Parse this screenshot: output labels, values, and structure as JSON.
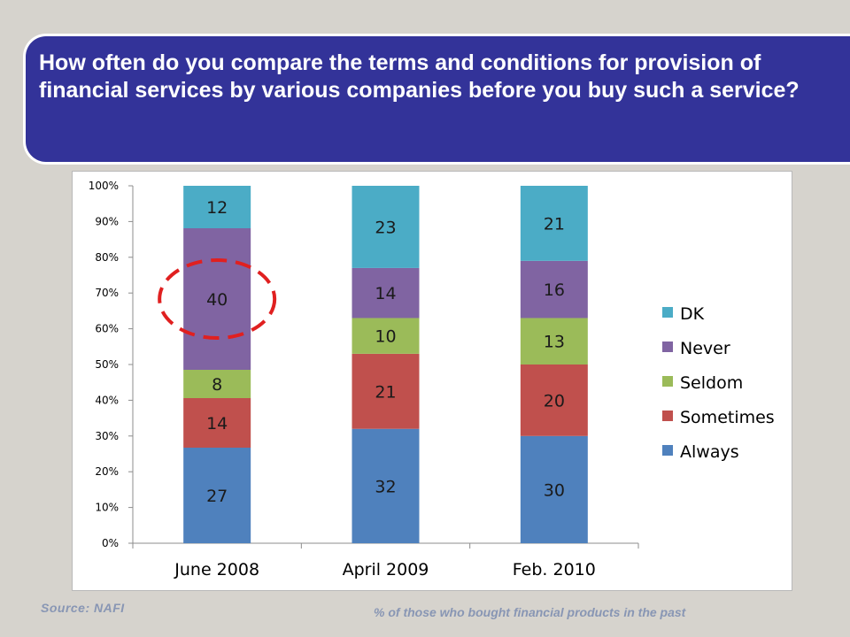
{
  "title": "How often do you compare the terms and conditions for provision of financial services by various companies before you buy such a service?",
  "source": "Source:  NAFI",
  "footnote": "% of those who bought financial products in the past",
  "colors": {
    "title_background": "#333399",
    "Always": "#4f81bd",
    "Sometimes": "#c0504d",
    "Seldom": "#9bbb59",
    "Never": "#8064a2",
    "DK": "#4bacc6",
    "highlight_circle": "#e02020"
  },
  "chart_data": {
    "type": "bar",
    "stacked": true,
    "categories": [
      "June 2008",
      "April  2009",
      "Feb. 2010"
    ],
    "series": [
      {
        "name": "Always",
        "values": [
          27,
          32,
          30
        ]
      },
      {
        "name": "Sometimes",
        "values": [
          14,
          21,
          20
        ]
      },
      {
        "name": "Seldom",
        "values": [
          8,
          10,
          13
        ]
      },
      {
        "name": "Never",
        "values": [
          40,
          14,
          16
        ]
      },
      {
        "name": "DK",
        "values": [
          12,
          23,
          21
        ]
      }
    ],
    "data_labels": true,
    "y_ticks": [
      "0%",
      "10%",
      "20%",
      "30%",
      "40%",
      "50%",
      "60%",
      "70%",
      "80%",
      "90%",
      "100%"
    ],
    "ylim": [
      0,
      100
    ],
    "y_scale": "percent of total",
    "legend_order": [
      "DK",
      "Never",
      "Seldom",
      "Sometimes",
      "Always"
    ],
    "legend_position": "right",
    "grid": false,
    "annotation": "dashed red circle around Never value of June 2008"
  }
}
